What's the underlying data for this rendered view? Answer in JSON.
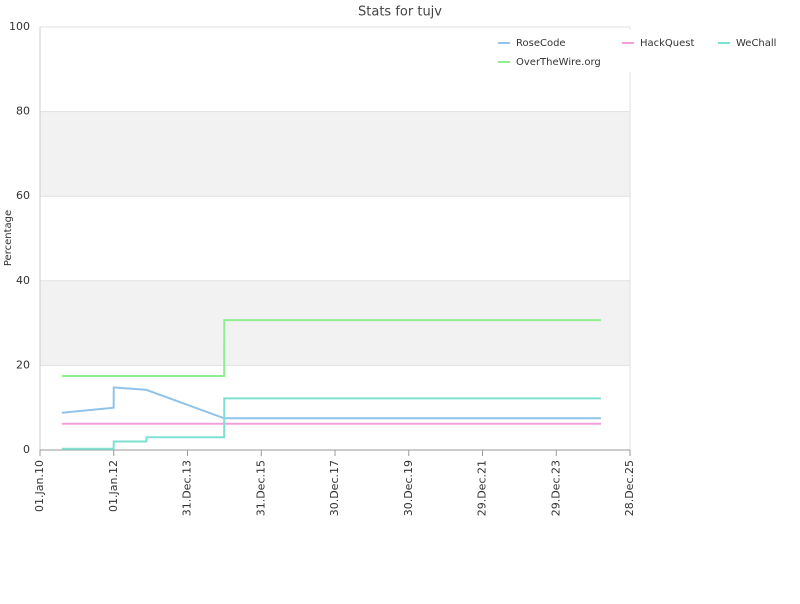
{
  "chart_data": {
    "type": "line",
    "title": "Stats for tujv",
    "y_label": "Percentage",
    "x": [
      "2010-08-05",
      "2011-12-31",
      "2012-01-01",
      "2012-06-15",
      "2012-11-19",
      "2012-11-20",
      "2014-12-29",
      "2014-12-30",
      "2025-03-15"
    ],
    "series": [
      {
        "name": "RoseCode",
        "color": "#90c3ec",
        "values": [
          8.8,
          10,
          14.8,
          14.5,
          14.2,
          14.2,
          7.5,
          7.5,
          7.5
        ]
      },
      {
        "name": "HackQuest",
        "color": "#f0a0d8",
        "values": [
          6.2,
          6.2,
          6.2,
          6.2,
          6.2,
          6.2,
          6.2,
          6.2,
          6.2
        ]
      },
      {
        "name": "WeChall",
        "color": "#7de0d0",
        "values": [
          0.3,
          0.3,
          2,
          2,
          2,
          3,
          3,
          12.2,
          12.2
        ]
      },
      {
        "name": "OverTheWire.org",
        "color": "#90ee90",
        "values": [
          17.5,
          17.5,
          17.5,
          17.5,
          17.5,
          17.5,
          17.5,
          30.7,
          30.7
        ]
      }
    ],
    "xlim": [
      "2010-01-01",
      "2025-12-28"
    ],
    "xticks": [
      {
        "value": "2010-01-01",
        "label": "01.Jan.10"
      },
      {
        "value": "2012-01-01",
        "label": "01.Jan.12"
      },
      {
        "value": "2013-12-31",
        "label": "31.Dec.13"
      },
      {
        "value": "2015-12-31",
        "label": "31.Dec.15"
      },
      {
        "value": "2017-12-30",
        "label": "30.Dec.17"
      },
      {
        "value": "2019-12-30",
        "label": "30.Dec.19"
      },
      {
        "value": "2021-12-29",
        "label": "29.Dec.21"
      },
      {
        "value": "2023-12-29",
        "label": "29.Dec.23"
      },
      {
        "value": "2025-12-28",
        "label": "28.Dec.25"
      }
    ],
    "ylim": [
      0,
      100
    ],
    "yticks": [
      0,
      20,
      40,
      60,
      80,
      100
    ],
    "grid": true,
    "legend": "top-right"
  }
}
